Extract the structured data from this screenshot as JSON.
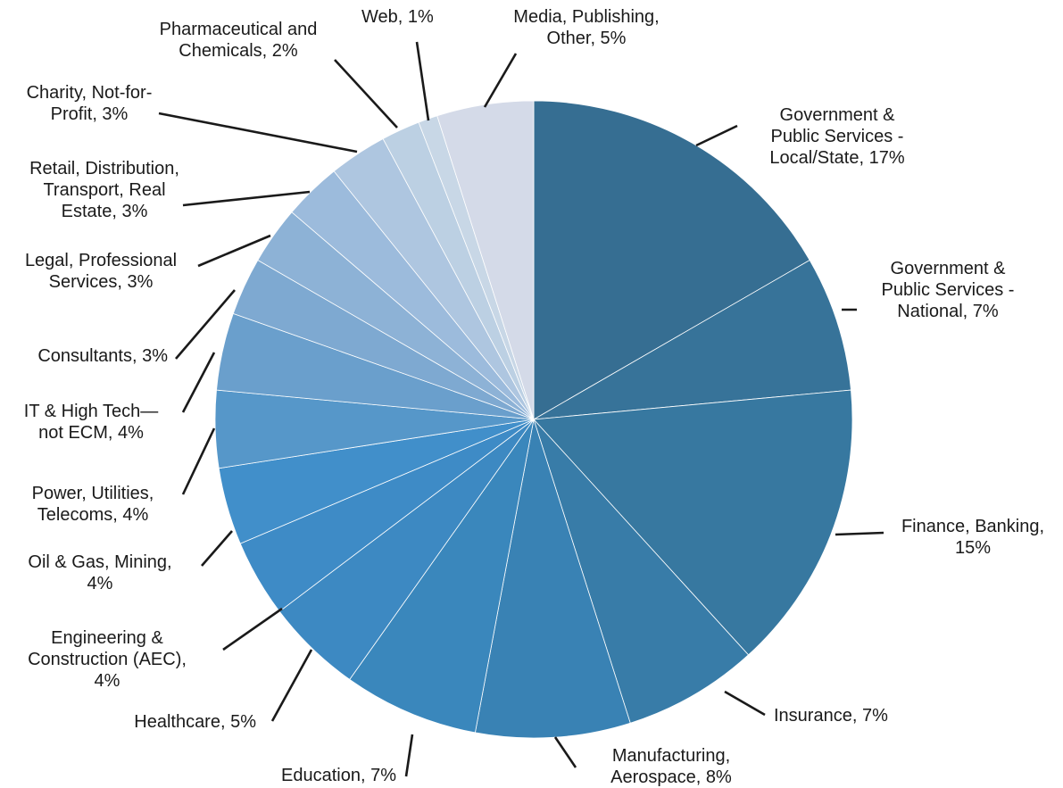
{
  "chart_data": {
    "type": "pie",
    "title": "",
    "legend": "none",
    "slices": [
      {
        "label_lines": [
          "Government &",
          "Public Services -",
          "Local/State, 17%"
        ],
        "value": 17,
        "color": "#366e92"
      },
      {
        "label_lines": [
          "Government &",
          "Public Services -",
          "National, 7%"
        ],
        "value": 7,
        "color": "#377399"
      },
      {
        "label_lines": [
          "Finance, Banking,",
          "15%"
        ],
        "value": 15,
        "color": "#3778a0"
      },
      {
        "label_lines": [
          "Insurance, 7%"
        ],
        "value": 7,
        "color": "#387ca8"
      },
      {
        "label_lines": [
          "Manufacturing,",
          "Aerospace, 8%"
        ],
        "value": 8,
        "color": "#3982b4"
      },
      {
        "label_lines": [
          "Education, 7%"
        ],
        "value": 7,
        "color": "#3a87bc"
      },
      {
        "label_lines": [
          "Healthcare, 5%"
        ],
        "value": 5,
        "color": "#3d89c2"
      },
      {
        "label_lines": [
          "Engineering &",
          "Construction (AEC),",
          "4%"
        ],
        "value": 4,
        "color": "#3e8bc6"
      },
      {
        "label_lines": [
          "Oil & Gas, Mining,",
          "4%"
        ],
        "value": 4,
        "color": "#418fca"
      },
      {
        "label_lines": [
          "Power, Utilities,",
          "Telecoms, 4%"
        ],
        "value": 4,
        "color": "#5697c9"
      },
      {
        "label_lines": [
          "IT & High Tech—",
          "not ECM, 4%"
        ],
        "value": 4,
        "color": "#6a9fcc"
      },
      {
        "label_lines": [
          "Consultants, 3%"
        ],
        "value": 3,
        "color": "#7ea9d1"
      },
      {
        "label_lines": [
          "Legal, Professional",
          "Services, 3%"
        ],
        "value": 3,
        "color": "#8db2d6"
      },
      {
        "label_lines": [
          "Retail, Distribution,",
          "Transport, Real",
          "Estate, 3%"
        ],
        "value": 3,
        "color": "#9cbbdc"
      },
      {
        "label_lines": [
          "Charity, Not-for-",
          "Profit, 3%"
        ],
        "value": 3,
        "color": "#aec6e0"
      },
      {
        "label_lines": [
          "Pharmaceutical and",
          "Chemicals, 2%"
        ],
        "value": 2,
        "color": "#bcd0e3"
      },
      {
        "label_lines": [
          "Web, 1%"
        ],
        "value": 1,
        "color": "#c8d7e6"
      },
      {
        "label_lines": [
          "Media, Publishing,",
          "Other, 5%"
        ],
        "value": 5,
        "color": "#d4dae8"
      }
    ]
  }
}
